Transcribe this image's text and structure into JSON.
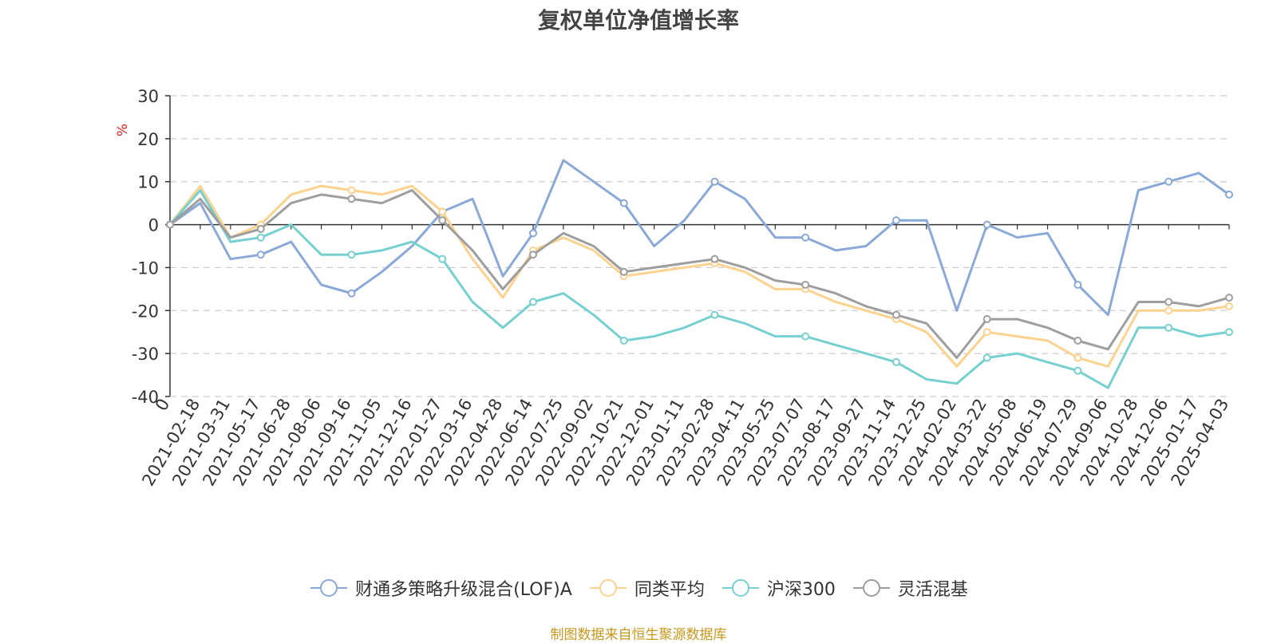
{
  "chart_data": {
    "type": "line",
    "title": "复权单位净值增长率",
    "ylabel": "%",
    "xlabel": "",
    "ylim": [
      -40,
      30
    ],
    "yticks": [
      30,
      20,
      10,
      0,
      -10,
      -20,
      -30,
      -40
    ],
    "grid": true,
    "legend_position": "bottom",
    "x_tick_labels": [
      "0",
      "2021-02-18",
      "2021-03-31",
      "2021-05-17",
      "2021-06-28",
      "2021-08-06",
      "2021-09-16",
      "2021-11-05",
      "2021-12-16",
      "2022-01-27",
      "2022-03-16",
      "2022-04-28",
      "2022-06-14",
      "2022-07-25",
      "2022-09-02",
      "2022-10-21",
      "2022-12-01",
      "2023-01-11",
      "2023-02-28",
      "2023-04-11",
      "2023-05-25",
      "2023-07-07",
      "2023-08-17",
      "2023-09-27",
      "2023-11-14",
      "2023-12-25",
      "2024-02-02",
      "2024-03-22",
      "2024-05-08",
      "2024-06-19",
      "2024-07-29",
      "2024-09-06",
      "2024-10-28",
      "2024-12-06",
      "2025-01-17",
      "2025-04-03"
    ],
    "x_index": [
      0,
      1,
      2,
      3,
      4,
      5,
      6,
      7,
      8,
      9,
      10,
      11,
      12,
      13,
      14,
      15,
      16,
      17,
      18,
      19,
      20,
      21,
      22,
      23,
      24,
      25,
      26,
      27,
      28,
      29,
      30,
      31,
      32,
      33,
      34,
      35
    ],
    "series": [
      {
        "name": "财通多策略升级混合(LOF)A",
        "color": "#8aa9d8",
        "values": [
          0,
          5,
          -8,
          -7,
          -4,
          -14,
          -16,
          -11,
          -5,
          3,
          6,
          -12,
          -2,
          15,
          10,
          5,
          -5,
          1,
          10,
          6,
          -3,
          -3,
          -6,
          -5,
          1,
          1,
          -20,
          0,
          -3,
          -2,
          -14,
          -21,
          8,
          10,
          12,
          7
        ]
      },
      {
        "name": "同类平均",
        "color": "#fcd28e",
        "values": [
          0,
          9,
          -3,
          0,
          7,
          9,
          8,
          7,
          9,
          3,
          -8,
          -17,
          -6,
          -3,
          -6,
          -12,
          -11,
          -10,
          -9,
          -11,
          -15,
          -15,
          -18,
          -20,
          -22,
          -25,
          -33,
          -25,
          -26,
          -27,
          -31,
          -33,
          -20,
          -20,
          -20,
          -19
        ]
      },
      {
        "name": "沪深300",
        "color": "#76d0d0",
        "values": [
          0,
          8,
          -4,
          -3,
          0,
          -7,
          -7,
          -6,
          -4,
          -8,
          -18,
          -24,
          -18,
          -16,
          -21,
          -27,
          -26,
          -24,
          -21,
          -23,
          -26,
          -26,
          -28,
          -30,
          -32,
          -36,
          -37,
          -31,
          -30,
          -32,
          -34,
          -38,
          -24,
          -24,
          -26,
          -25
        ]
      },
      {
        "name": "灵活混基",
        "color": "#9e9e9e",
        "values": [
          0,
          6,
          -3,
          -1,
          5,
          7,
          6,
          5,
          8,
          1,
          -6,
          -15,
          -7,
          -2,
          -5,
          -11,
          -10,
          -9,
          -8,
          -10,
          -13,
          -14,
          -16,
          -19,
          -21,
          -23,
          -31,
          -22,
          -22,
          -24,
          -27,
          -29,
          -18,
          -18,
          -19,
          -17
        ]
      }
    ]
  },
  "source_note": "制图数据来自恒生聚源数据库"
}
